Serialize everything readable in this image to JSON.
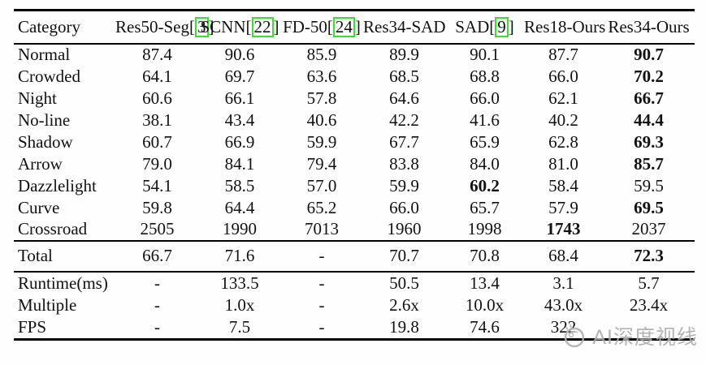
{
  "table": {
    "header": {
      "columns": [
        {
          "label": "Category",
          "cite": ""
        },
        {
          "label": "Res50-Seg",
          "cite": "3"
        },
        {
          "label": "SCNN",
          "cite": "22"
        },
        {
          "label": "FD-50",
          "cite": "24"
        },
        {
          "label": "Res34-SAD",
          "cite": ""
        },
        {
          "label": "SAD",
          "cite": "9"
        },
        {
          "label": "Res18-Ours",
          "cite": ""
        },
        {
          "label": "Res34-Ours",
          "cite": ""
        }
      ]
    },
    "sections": [
      {
        "name": "accuracy",
        "rows": [
          {
            "category": "Normal",
            "values": [
              "87.4",
              "90.6",
              "85.9",
              "89.9",
              "90.1",
              "87.7",
              "90.7"
            ],
            "bold": [
              6
            ]
          },
          {
            "category": "Crowded",
            "values": [
              "64.1",
              "69.7",
              "63.6",
              "68.5",
              "68.8",
              "66.0",
              "70.2"
            ],
            "bold": [
              6
            ]
          },
          {
            "category": "Night",
            "values": [
              "60.6",
              "66.1",
              "57.8",
              "64.6",
              "66.0",
              "62.1",
              "66.7"
            ],
            "bold": [
              6
            ]
          },
          {
            "category": "No-line",
            "values": [
              "38.1",
              "43.4",
              "40.6",
              "42.2",
              "41.6",
              "40.2",
              "44.4"
            ],
            "bold": [
              6
            ]
          },
          {
            "category": "Shadow",
            "values": [
              "60.7",
              "66.9",
              "59.9",
              "67.7",
              "65.9",
              "62.8",
              "69.3"
            ],
            "bold": [
              6
            ]
          },
          {
            "category": "Arrow",
            "values": [
              "79.0",
              "84.1",
              "79.4",
              "83.8",
              "84.0",
              "81.0",
              "85.7"
            ],
            "bold": [
              6
            ]
          },
          {
            "category": "Dazzlelight",
            "values": [
              "54.1",
              "58.5",
              "57.0",
              "59.9",
              "60.2",
              "58.4",
              "59.5"
            ],
            "bold": [
              4
            ]
          },
          {
            "category": "Curve",
            "values": [
              "59.8",
              "64.4",
              "65.2",
              "66.0",
              "65.7",
              "57.9",
              "69.5"
            ],
            "bold": [
              6
            ]
          },
          {
            "category": "Crossroad",
            "values": [
              "2505",
              "1990",
              "7013",
              "1960",
              "1998",
              "1743",
              "2037"
            ],
            "bold": [
              5
            ]
          }
        ]
      },
      {
        "name": "total",
        "rows": [
          {
            "category": "Total",
            "values": [
              "66.7",
              "71.6",
              "-",
              "70.7",
              "70.8",
              "68.4",
              "72.3"
            ],
            "bold": [
              6
            ]
          }
        ]
      },
      {
        "name": "performance",
        "rows": [
          {
            "category": "Runtime(ms)",
            "values": [
              "-",
              "133.5",
              "-",
              "50.5",
              "13.4",
              "3.1",
              "5.7"
            ],
            "bold": []
          },
          {
            "category": "Multiple",
            "values": [
              "-",
              "1.0x",
              "-",
              "2.6x",
              "10.0x",
              "43.0x",
              "23.4x"
            ],
            "bold": []
          },
          {
            "category": "FPS",
            "values": [
              "-",
              "7.5",
              "-",
              "19.8",
              "74.6",
              "322",
              ""
            ],
            "bold": []
          }
        ]
      }
    ]
  },
  "watermark": {
    "text": "AI深度视线"
  },
  "colors": {
    "citation_box": "#35e22d",
    "rule": "#000000",
    "text": "#111111",
    "watermark": "#ababab"
  }
}
